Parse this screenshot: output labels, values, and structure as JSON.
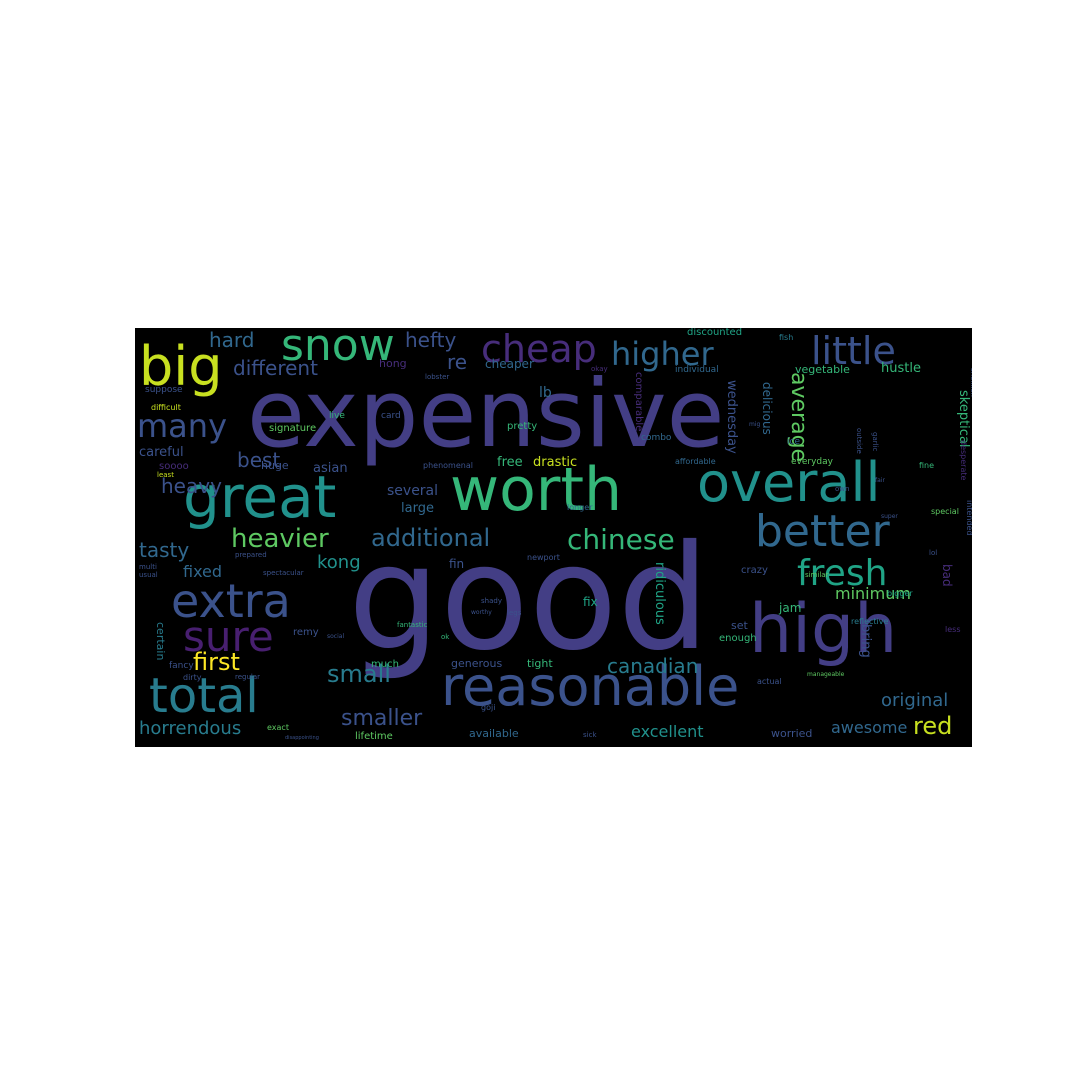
{
  "palette": {
    "indigo": "#433e85",
    "purple": "#472d7b",
    "deep": "#481f70",
    "blue": "#3b528b",
    "steel": "#31688e",
    "teal": "#287c8e",
    "cyan": "#21918c",
    "sea": "#20a486",
    "green": "#35b779",
    "lime": "#5ec962",
    "chart": "#90d743",
    "yellow": "#c8e020",
    "bright": "#fde725"
  },
  "words": {
    "good": "good",
    "expensive": "expensive",
    "worth": "worth",
    "great": "great",
    "overall": "overall",
    "high": "high",
    "reasonable": "reasonable",
    "extra": "extra",
    "sure": "sure",
    "total": "total",
    "big": "big",
    "snow": "snow",
    "cheap": "cheap",
    "little": "little",
    "higher": "higher",
    "better": "better",
    "chinese": "chinese",
    "fresh": "fresh",
    "heavier": "heavier",
    "additional": "additional",
    "many": "many",
    "hard": "hard",
    "hefty": "hefty",
    "different": "different",
    "tasty": "tasty",
    "first": "first",
    "small": "small",
    "smaller": "smaller",
    "horrendous": "horrendous",
    "canadian": "canadian",
    "original": "original",
    "red": "red",
    "excellent": "excellent",
    "awesome": "awesome",
    "kong": "kong",
    "heavy": "heavy",
    "best": "best",
    "average": "average",
    "minimum": "minimum",
    "fixed": "fixed",
    "re": "re",
    "lb": "lb",
    "hong": "hong",
    "cheaper": "cheaper",
    "drastic": "drastic",
    "free": "free",
    "several": "several",
    "large": "large",
    "asian": "asian",
    "huge": "huge",
    "careful": "careful",
    "soooo": "soooo",
    "signature": "signature",
    "card": "card",
    "pretty": "pretty",
    "combo": "combo",
    "wednesday": "wednesday",
    "delicious": "delicious",
    "vegetable": "vegetable",
    "hustle": "hustle",
    "skeptical": "skeptical",
    "everyday": "everyday",
    "ice": "ice",
    "discounted": "discounted",
    "fish": "fish",
    "okay": "okay",
    "individual": "individual",
    "comparable": "comparable",
    "affordable": "affordable",
    "phenomenal": "phenomenal",
    "fin": "fin",
    "ridiculous": "ridiculous",
    "crazy": "crazy",
    "fix": "fix",
    "set": "set",
    "jam": "jam",
    "enough": "enough",
    "bring": "bring",
    "bad": "bad",
    "special": "special",
    "fine": "fine",
    "similar": "similar",
    "bigger": "bigger",
    "reflective": "reflective",
    "less": "less",
    "lifetime": "lifetime",
    "available": "available",
    "worried": "worried",
    "exact": "exact",
    "goji": "goji",
    "much": "much",
    "generous": "generous",
    "tight": "tight",
    "remy": "remy",
    "certain": "certain",
    "fancy": "fancy",
    "dirty": "dirty",
    "regular": "regular",
    "suppose": "suppose",
    "prepared": "prepared",
    "multi": "multi",
    "usual": "usual",
    "difficult": "difficult",
    "least": "least",
    "live": "live",
    "longer": "longer",
    "newport": "newport",
    "legs": "legs",
    "shady": "shady",
    "fantastic": "fantastic",
    "ok": "ok",
    "manageable": "manageable",
    "actual": "actual",
    "desperate": "desperate",
    "intended": "intended",
    "spectacular": "spectacular",
    "social": "social",
    "lobster": "lobster",
    "sick": "sick",
    "worthy": "worthy",
    "disappointing": "disappointing",
    "outside": "outside",
    "garlic": "garlic",
    "shellfish": "shellfish",
    "super": "super",
    "lol": "lol",
    "fair": "fair",
    "own": "own",
    "mig": "mig"
  }
}
